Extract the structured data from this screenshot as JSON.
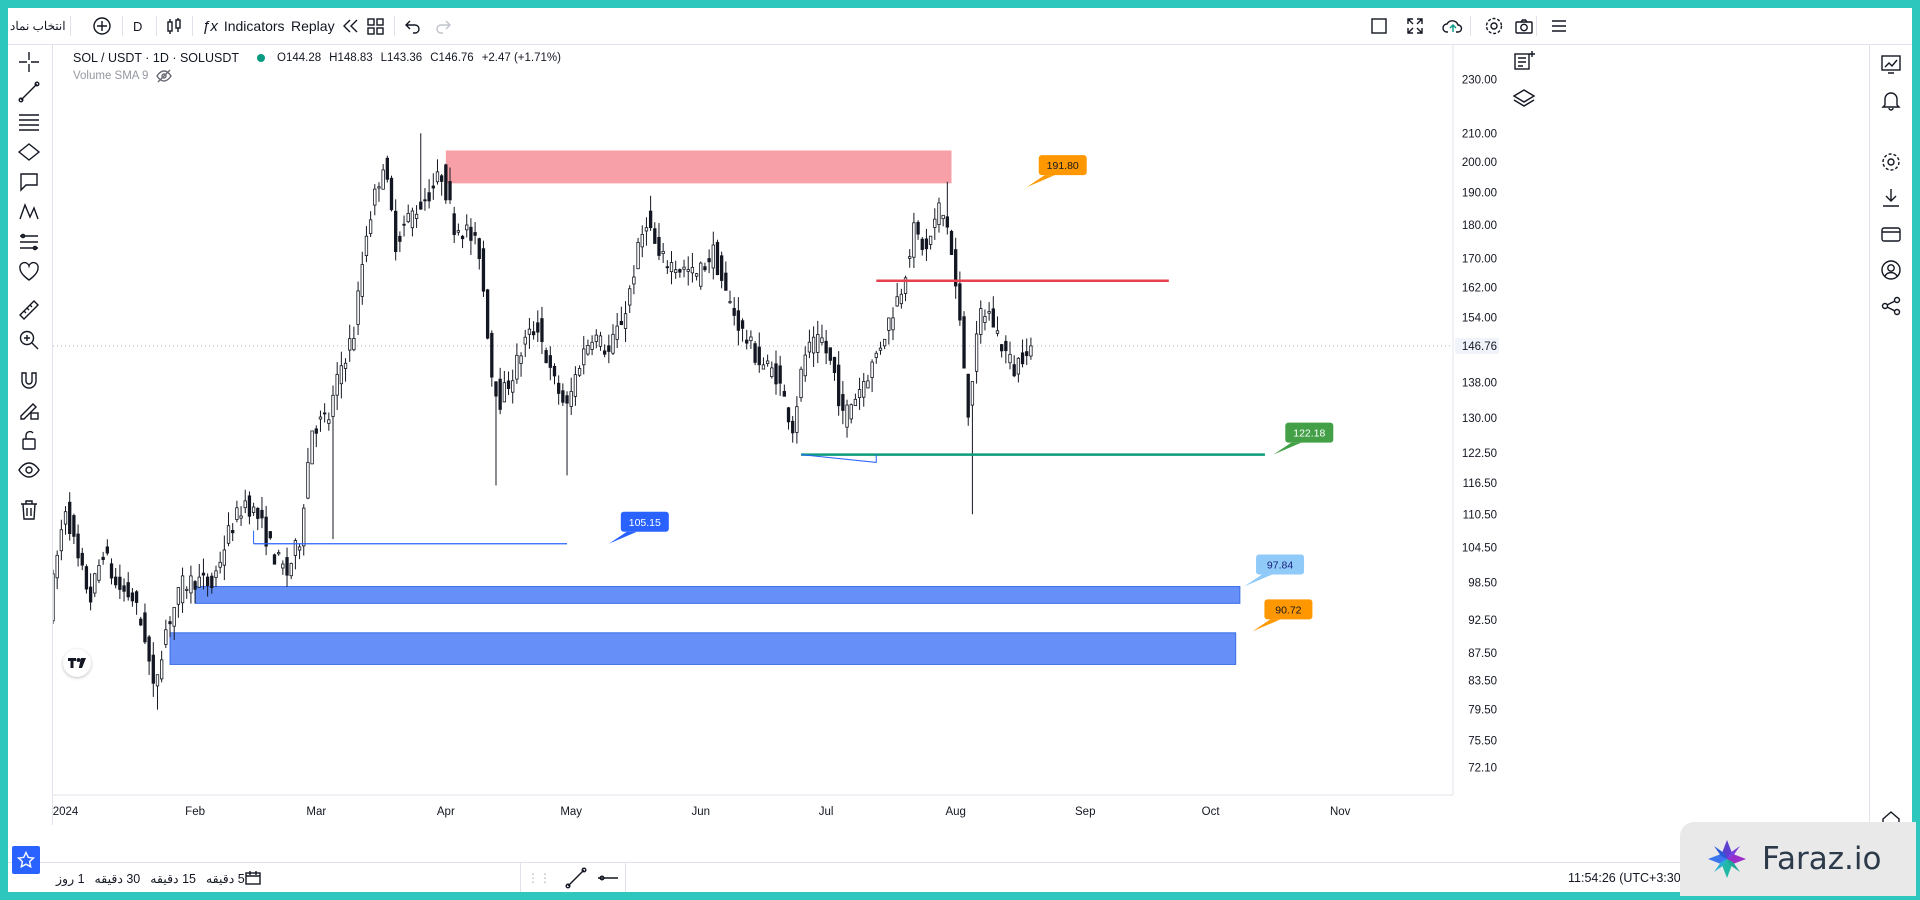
{
  "topbar": {
    "symbol_search": "انتخاب نماد",
    "interval": "D",
    "indicators_label": "Indicators",
    "replay_label": "Replay"
  },
  "legend": {
    "symbol": "SOL / USDT · 1D · SOLUSDT",
    "open": "O144.28",
    "high": "H148.83",
    "low": "L143.36",
    "close": "C146.76",
    "change": "+2.47 (+1.71%)",
    "volume_label": "Volume SMA 9"
  },
  "bottombar": {
    "ranges": [
      "5 دقیقه",
      "15 دقیقه",
      "30 دقیقه",
      "1 روز"
    ],
    "clock": "11:54:26 (UTC+3:30)"
  },
  "watermark": {
    "text": "Faraz.io"
  },
  "colors": {
    "bull": "#131722",
    "bear": "#131722",
    "supply_zone": "#f8a0a8",
    "demand_zone": "#6690f8",
    "resistance_line": "#e8404e",
    "support_line": "#0d9c7a",
    "blue_line": "#2962ff"
  },
  "chart_data": {
    "type": "candlestick",
    "symbol": "SOLUSDT",
    "interval": "1D",
    "y_scale": "log",
    "ylim": [
      70.5,
      238
    ],
    "y_ticks": [
      230.0,
      210.0,
      200.0,
      190.0,
      180.0,
      170.0,
      162.0,
      154.0,
      146.76,
      138.0,
      130.0,
      122.5,
      116.5,
      110.5,
      104.5,
      98.5,
      92.5,
      87.5,
      83.5,
      79.5,
      75.5,
      72.1
    ],
    "y_tick_labels": [
      "230.00",
      "210.00",
      "200.00",
      "190.00",
      "180.00",
      "170.00",
      "162.00",
      "154.00",
      "146.76",
      "138.00",
      "130.00",
      "122.50",
      "116.50",
      "110.50",
      "104.50",
      "98.50",
      "92.50",
      "87.50",
      "83.50",
      "79.50",
      "75.50",
      "72.10"
    ],
    "last_price": 146.76,
    "x_range": [
      "2023-12-29",
      "2024-11-28"
    ],
    "x_ticks": [
      {
        "date": "2024-01-01",
        "label": "2024"
      },
      {
        "date": "2024-02-01",
        "label": "Feb"
      },
      {
        "date": "2024-03-01",
        "label": "Mar"
      },
      {
        "date": "2024-04-01",
        "label": "Apr"
      },
      {
        "date": "2024-05-01",
        "label": "May"
      },
      {
        "date": "2024-06-01",
        "label": "Jun"
      },
      {
        "date": "2024-07-01",
        "label": "Jul"
      },
      {
        "date": "2024-08-01",
        "label": "Aug"
      },
      {
        "date": "2024-09-01",
        "label": "Sep"
      },
      {
        "date": "2024-10-01",
        "label": "Oct"
      },
      {
        "date": "2024-11-01",
        "label": "Nov"
      }
    ],
    "anchors": [
      [
        "2023-12-29",
        94
      ],
      [
        "2024-01-02",
        112
      ],
      [
        "2024-01-05",
        102
      ],
      [
        "2024-01-08",
        96
      ],
      [
        "2024-01-11",
        104
      ],
      [
        "2024-01-14",
        98
      ],
      [
        "2024-01-18",
        96
      ],
      [
        "2024-01-21",
        90
      ],
      [
        "2024-01-23",
        82
      ],
      [
        "2024-01-26",
        91
      ],
      [
        "2024-01-30",
        98
      ],
      [
        "2024-02-02",
        99
      ],
      [
        "2024-02-06",
        98
      ],
      [
        "2024-02-10",
        107
      ],
      [
        "2024-02-14",
        113
      ],
      [
        "2024-02-17",
        110
      ],
      [
        "2024-02-21",
        103
      ],
      [
        "2024-02-24",
        100
      ],
      [
        "2024-02-27",
        106
      ],
      [
        "2024-03-01",
        128
      ],
      [
        "2024-03-05",
        130
      ],
      [
        "2024-03-08",
        142
      ],
      [
        "2024-03-11",
        150
      ],
      [
        "2024-03-14",
        178
      ],
      [
        "2024-03-18",
        200
      ],
      [
        "2024-03-21",
        175
      ],
      [
        "2024-03-24",
        182
      ],
      [
        "2024-03-28",
        188
      ],
      [
        "2024-04-01",
        196
      ],
      [
        "2024-04-04",
        180
      ],
      [
        "2024-04-07",
        178
      ],
      [
        "2024-04-10",
        172
      ],
      [
        "2024-04-13",
        140
      ],
      [
        "2024-04-15",
        134
      ],
      [
        "2024-04-18",
        140
      ],
      [
        "2024-04-21",
        148
      ],
      [
        "2024-04-24",
        152
      ],
      [
        "2024-04-27",
        140
      ],
      [
        "2024-05-01",
        132
      ],
      [
        "2024-05-04",
        143
      ],
      [
        "2024-05-07",
        150
      ],
      [
        "2024-05-11",
        145
      ],
      [
        "2024-05-15",
        156
      ],
      [
        "2024-05-18",
        172
      ],
      [
        "2024-05-20",
        182
      ],
      [
        "2024-05-23",
        170
      ],
      [
        "2024-05-27",
        168
      ],
      [
        "2024-06-01",
        165
      ],
      [
        "2024-06-05",
        172
      ],
      [
        "2024-06-08",
        160
      ],
      [
        "2024-06-12",
        150
      ],
      [
        "2024-06-16",
        143
      ],
      [
        "2024-06-20",
        140
      ],
      [
        "2024-06-24",
        128
      ],
      [
        "2024-06-27",
        145
      ],
      [
        "2024-07-01",
        148
      ],
      [
        "2024-07-04",
        140
      ],
      [
        "2024-07-06",
        130
      ],
      [
        "2024-07-09",
        135
      ],
      [
        "2024-07-13",
        142
      ],
      [
        "2024-07-16",
        150
      ],
      [
        "2024-07-20",
        162
      ],
      [
        "2024-07-23",
        178
      ],
      [
        "2024-07-26",
        172
      ],
      [
        "2024-07-29",
        185
      ],
      [
        "2024-07-31",
        180
      ],
      [
        "2024-08-02",
        162
      ],
      [
        "2024-08-05",
        132
      ],
      [
        "2024-08-08",
        155
      ],
      [
        "2024-08-10",
        155
      ],
      [
        "2024-08-13",
        147
      ],
      [
        "2024-08-16",
        141
      ],
      [
        "2024-08-19",
        146.76
      ]
    ],
    "wicks": [
      {
        "date": "2024-03-26",
        "high": 210
      },
      {
        "date": "2024-04-13",
        "low": 116
      },
      {
        "date": "2024-04-30",
        "low": 118
      },
      {
        "date": "2024-05-20",
        "high": 189
      },
      {
        "date": "2024-03-05",
        "low": 106
      },
      {
        "date": "2024-01-23",
        "low": 79.5
      },
      {
        "date": "2024-08-05",
        "low": 110.5
      },
      {
        "date": "2024-07-30",
        "high": 193.5
      }
    ],
    "drawings": {
      "zones": [
        {
          "name": "supply-zone",
          "from": "2024-04-01",
          "to": "2024-07-31",
          "top": 204,
          "bottom": 193,
          "color": "#f8a0a8"
        },
        {
          "name": "demand-zone-upper",
          "from": "2024-02-01",
          "to": "2024-10-08",
          "top": 97.84,
          "bottom": 95.1,
          "color": "#6690f8"
        },
        {
          "name": "demand-zone-lower",
          "from": "2024-01-26",
          "to": "2024-10-07",
          "top": 90.5,
          "bottom": 85.8,
          "color": "#6690f8"
        }
      ],
      "lines": [
        {
          "name": "resistance-line",
          "from": "2024-07-13",
          "to": "2024-09-21",
          "price": 163.8,
          "color": "#e8404e"
        },
        {
          "name": "support-line",
          "from": "2024-06-25",
          "to": "2024-10-14",
          "price": 122.18,
          "color": "#0d9c7a"
        },
        {
          "name": "blue-level-line",
          "from": "2024-02-15",
          "to": "2024-04-30",
          "price": 105.15,
          "color": "#2962ff"
        }
      ],
      "callouts": [
        {
          "name": "callout-191-80",
          "text": "191.80",
          "date": "2024-08-18",
          "price": 191.8,
          "color": "#ff9800"
        },
        {
          "name": "callout-122-18",
          "text": "122.18",
          "date": "2024-10-16",
          "price": 122.18,
          "color": "#43a047"
        },
        {
          "name": "callout-105-15",
          "text": "105.15",
          "date": "2024-05-10",
          "price": 105.15,
          "color": "#2962ff"
        },
        {
          "name": "callout-97-84",
          "text": "97.84",
          "date": "2024-10-09",
          "price": 97.84,
          "color": "#90caf9"
        },
        {
          "name": "callout-90-72",
          "text": "90.72",
          "date": "2024-10-11",
          "price": 90.72,
          "color": "#ff9800"
        }
      ]
    }
  }
}
